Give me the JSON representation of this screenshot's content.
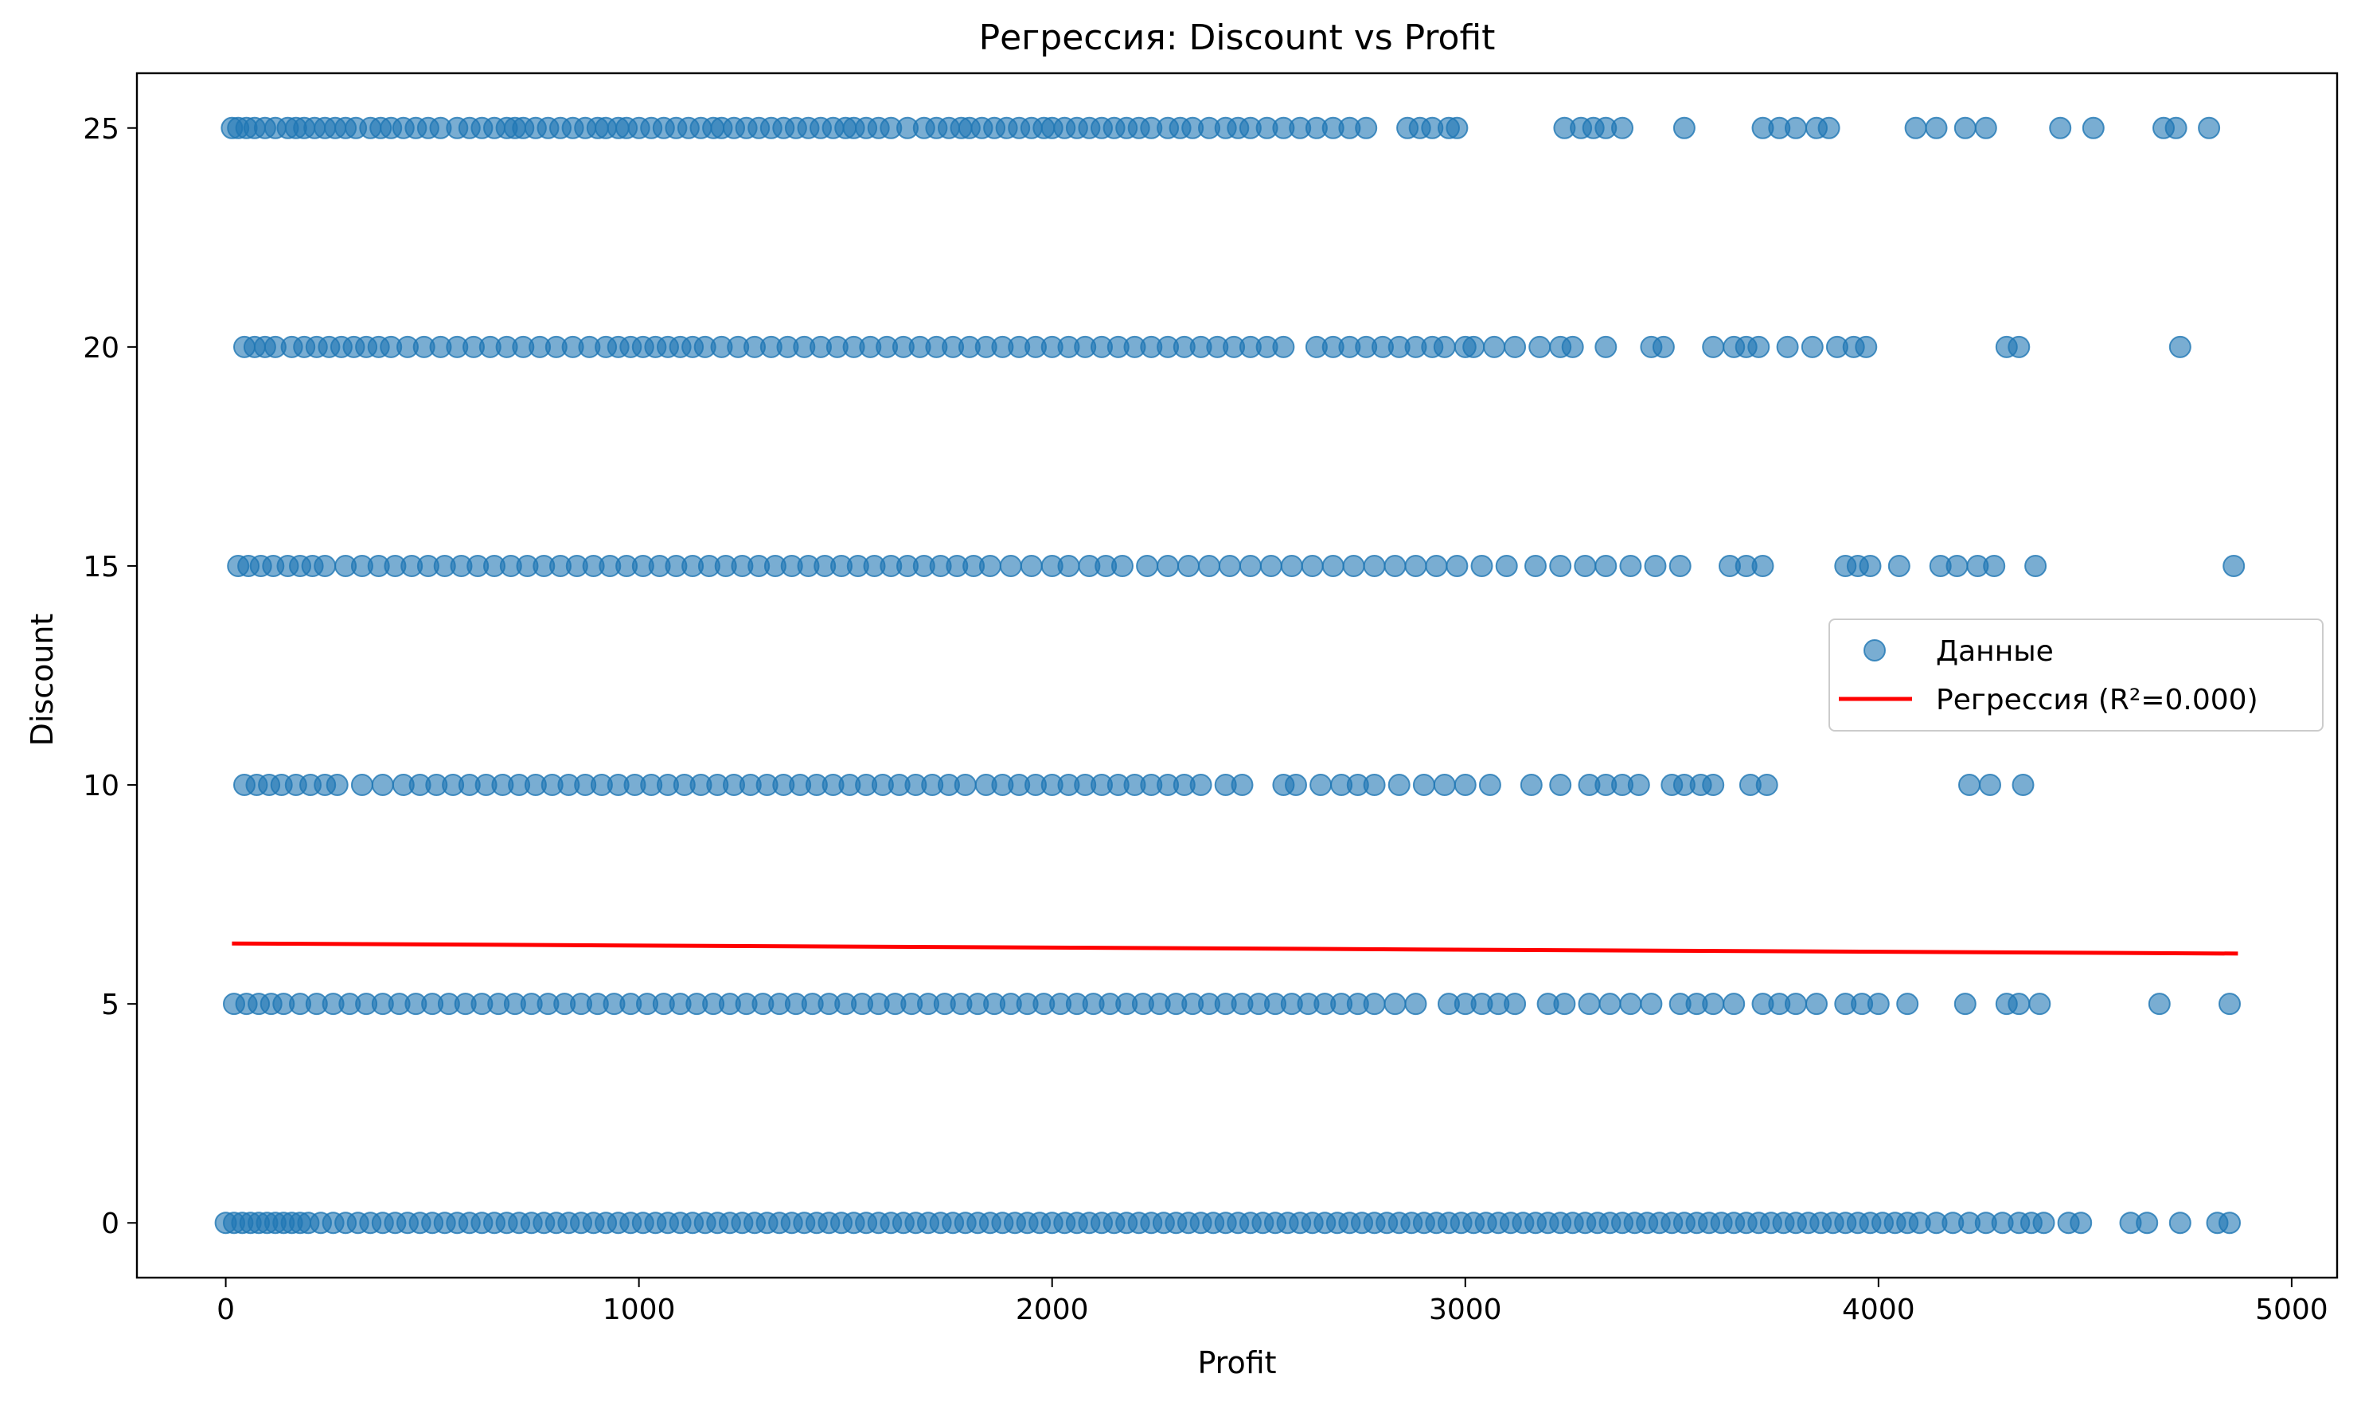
{
  "chart_data": {
    "type": "scatter",
    "title": "Регрессия: Discount vs Profit",
    "xlabel": "Profit",
    "ylabel": "Discount",
    "xlim": [
      -215,
      5110
    ],
    "ylim": [
      -1.25,
      26.25
    ],
    "xticks": [
      0,
      1000,
      2000,
      3000,
      4000,
      5000
    ],
    "yticks": [
      0,
      5,
      10,
      15,
      20,
      25
    ],
    "grid": false,
    "legend_position": "center-right",
    "colors": {
      "points": "#1f77b4",
      "regression": "#ff0000"
    },
    "series": [
      {
        "name": "Данные",
        "kind": "points",
        "levels": [
          {
            "y": 25,
            "x": [
              15,
              30,
              50,
              70,
              95,
              120,
              150,
              170,
              190,
              215,
              240,
              265,
              290,
              315,
              350,
              375,
              400,
              430,
              460,
              490,
              520,
              560,
              590,
              620,
              650,
              680,
              700,
              720,
              750,
              780,
              810,
              840,
              870,
              900,
              920,
              950,
              970,
              1000,
              1030,
              1060,
              1090,
              1120,
              1150,
              1180,
              1200,
              1230,
              1260,
              1290,
              1320,
              1350,
              1380,
              1410,
              1440,
              1470,
              1500,
              1520,
              1550,
              1580,
              1610,
              1650,
              1690,
              1720,
              1750,
              1780,
              1800,
              1830,
              1860,
              1890,
              1920,
              1950,
              1980,
              2000,
              2030,
              2060,
              2090,
              2120,
              2150,
              2180,
              2210,
              2240,
              2280,
              2310,
              2340,
              2380,
              2420,
              2450,
              2480,
              2520,
              2560,
              2600,
              2640,
              2680,
              2720,
              2760,
              2860,
              2890,
              2920,
              2960,
              2980,
              3240,
              3280,
              3310,
              3340,
              3380,
              3530,
              3720,
              3760,
              3800,
              3850,
              3880,
              4090,
              4140,
              4210,
              4260,
              4440,
              4520,
              4690,
              4720,
              4800
            ]
          },
          {
            "y": 20,
            "x": [
              45,
              70,
              95,
              120,
              160,
              190,
              220,
              250,
              280,
              310,
              340,
              370,
              400,
              440,
              480,
              520,
              560,
              600,
              640,
              680,
              720,
              760,
              800,
              840,
              880,
              920,
              950,
              980,
              1010,
              1040,
              1070,
              1100,
              1130,
              1160,
              1200,
              1240,
              1280,
              1320,
              1360,
              1400,
              1440,
              1480,
              1520,
              1560,
              1600,
              1640,
              1680,
              1720,
              1760,
              1800,
              1840,
              1880,
              1920,
              1960,
              2000,
              2040,
              2080,
              2120,
              2160,
              2200,
              2240,
              2280,
              2320,
              2360,
              2400,
              2440,
              2480,
              2520,
              2560,
              2640,
              2680,
              2720,
              2760,
              2800,
              2840,
              2880,
              2920,
              2950,
              3000,
              3020,
              3070,
              3120,
              3180,
              3230,
              3260,
              3340,
              3450,
              3480,
              3600,
              3650,
              3680,
              3710,
              3780,
              3840,
              3900,
              3940,
              3970,
              4310,
              4340,
              4730
            ]
          },
          {
            "y": 15,
            "x": [
              30,
              55,
              85,
              115,
              150,
              180,
              210,
              240,
              290,
              330,
              370,
              410,
              450,
              490,
              530,
              570,
              610,
              650,
              690,
              730,
              770,
              810,
              850,
              890,
              930,
              970,
              1010,
              1050,
              1090,
              1130,
              1170,
              1210,
              1250,
              1290,
              1330,
              1370,
              1410,
              1450,
              1490,
              1530,
              1570,
              1610,
              1650,
              1690,
              1730,
              1770,
              1810,
              1850,
              1900,
              1950,
              2000,
              2040,
              2090,
              2130,
              2170,
              2230,
              2280,
              2330,
              2380,
              2430,
              2480,
              2530,
              2580,
              2630,
              2680,
              2730,
              2780,
              2830,
              2880,
              2930,
              2980,
              3040,
              3100,
              3170,
              3230,
              3290,
              3340,
              3400,
              3460,
              3520,
              3640,
              3680,
              3720,
              3920,
              3950,
              3980,
              4050,
              4150,
              4190,
              4240,
              4280,
              4380,
              4860
            ]
          },
          {
            "y": 10,
            "x": [
              45,
              75,
              105,
              135,
              170,
              205,
              240,
              270,
              330,
              380,
              430,
              470,
              510,
              550,
              590,
              630,
              670,
              710,
              750,
              790,
              830,
              870,
              910,
              950,
              990,
              1030,
              1070,
              1110,
              1150,
              1190,
              1230,
              1270,
              1310,
              1350,
              1390,
              1430,
              1470,
              1510,
              1550,
              1590,
              1630,
              1670,
              1710,
              1750,
              1790,
              1840,
              1880,
              1920,
              1960,
              2000,
              2040,
              2080,
              2120,
              2160,
              2200,
              2240,
              2280,
              2320,
              2360,
              2420,
              2460,
              2560,
              2590,
              2650,
              2700,
              2740,
              2780,
              2840,
              2900,
              2950,
              3000,
              3060,
              3160,
              3230,
              3300,
              3340,
              3380,
              3420,
              3500,
              3530,
              3570,
              3600,
              3690,
              3730,
              4220,
              4270,
              4350
            ]
          },
          {
            "y": 5,
            "x": [
              20,
              50,
              80,
              110,
              140,
              180,
              220,
              260,
              300,
              340,
              380,
              420,
              460,
              500,
              540,
              580,
              620,
              660,
              700,
              740,
              780,
              820,
              860,
              900,
              940,
              980,
              1020,
              1060,
              1100,
              1140,
              1180,
              1220,
              1260,
              1300,
              1340,
              1380,
              1420,
              1460,
              1500,
              1540,
              1580,
              1620,
              1660,
              1700,
              1740,
              1780,
              1820,
              1860,
              1900,
              1940,
              1980,
              2020,
              2060,
              2100,
              2140,
              2180,
              2220,
              2260,
              2300,
              2340,
              2380,
              2420,
              2460,
              2500,
              2540,
              2580,
              2620,
              2660,
              2700,
              2740,
              2780,
              2830,
              2880,
              2960,
              3000,
              3040,
              3080,
              3120,
              3200,
              3240,
              3300,
              3350,
              3400,
              3450,
              3520,
              3560,
              3600,
              3650,
              3720,
              3760,
              3800,
              3850,
              3920,
              3960,
              4000,
              4070,
              4210,
              4310,
              4340,
              4390,
              4680,
              4850
            ]
          },
          {
            "y": 0,
            "x": [
              0,
              20,
              40,
              60,
              80,
              100,
              120,
              140,
              160,
              180,
              200,
              230,
              260,
              290,
              320,
              350,
              380,
              410,
              440,
              470,
              500,
              530,
              560,
              590,
              620,
              650,
              680,
              710,
              740,
              770,
              800,
              830,
              860,
              890,
              920,
              950,
              980,
              1010,
              1040,
              1070,
              1100,
              1130,
              1160,
              1190,
              1220,
              1250,
              1280,
              1310,
              1340,
              1370,
              1400,
              1430,
              1460,
              1490,
              1520,
              1550,
              1580,
              1610,
              1640,
              1670,
              1700,
              1730,
              1760,
              1790,
              1820,
              1850,
              1880,
              1910,
              1940,
              1970,
              2000,
              2030,
              2060,
              2090,
              2120,
              2150,
              2180,
              2210,
              2240,
              2270,
              2300,
              2330,
              2360,
              2390,
              2420,
              2450,
              2480,
              2510,
              2540,
              2570,
              2600,
              2630,
              2660,
              2690,
              2720,
              2750,
              2780,
              2810,
              2840,
              2870,
              2900,
              2930,
              2960,
              2990,
              3020,
              3050,
              3080,
              3110,
              3140,
              3170,
              3200,
              3230,
              3260,
              3290,
              3320,
              3350,
              3380,
              3410,
              3440,
              3470,
              3500,
              3530,
              3560,
              3590,
              3620,
              3650,
              3680,
              3710,
              3740,
              3770,
              3800,
              3830,
              3860,
              3890,
              3920,
              3950,
              3980,
              4010,
              4040,
              4070,
              4100,
              4140,
              4180,
              4220,
              4260,
              4300,
              4340,
              4370,
              4400,
              4460,
              4490,
              4610,
              4650,
              4730,
              4820,
              4850
            ]
          }
        ]
      },
      {
        "name": "Регрессия (R²=0.000)",
        "kind": "line",
        "x": [
          15,
          4870
        ],
        "y": [
          6.38,
          6.15
        ]
      }
    ]
  }
}
